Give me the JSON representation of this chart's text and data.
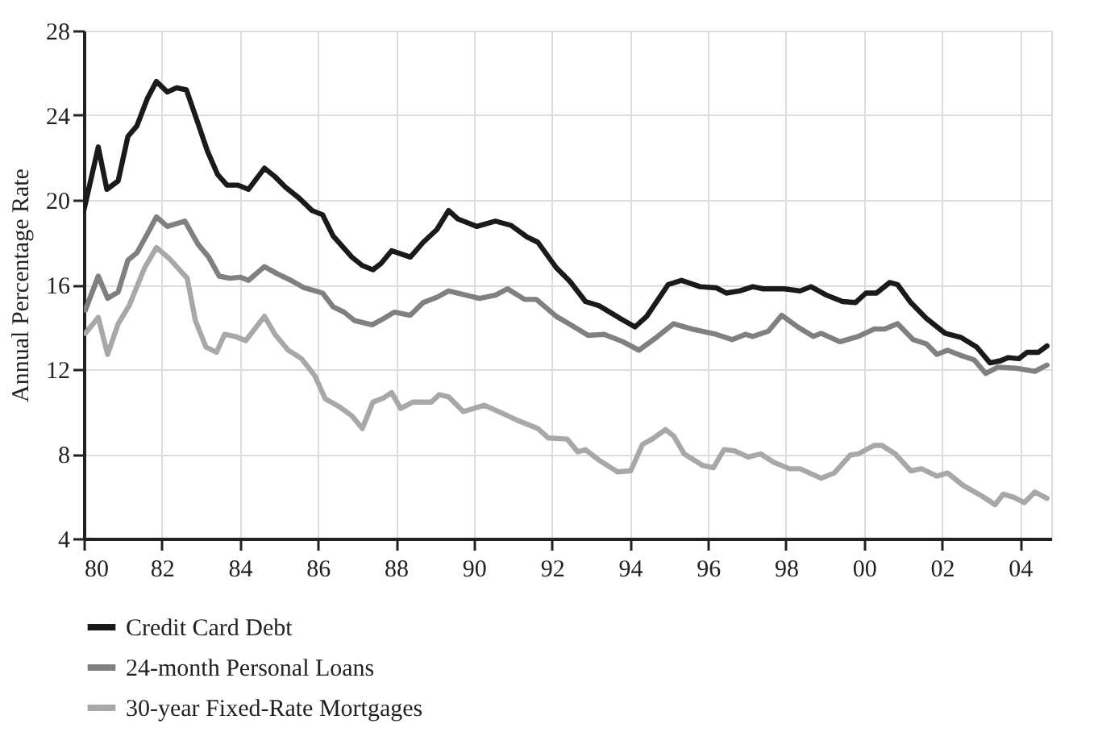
{
  "chart_data": {
    "type": "line",
    "ylabel": "Annual Percentage Rate",
    "xlim": [
      1980,
      2004.8
    ],
    "ylim": [
      4,
      28
    ],
    "xticks": [
      {
        "value": 1980,
        "label": "80"
      },
      {
        "value": 1982,
        "label": "82"
      },
      {
        "value": 1984,
        "label": "84"
      },
      {
        "value": 1986,
        "label": "86"
      },
      {
        "value": 1988,
        "label": "88"
      },
      {
        "value": 1990,
        "label": "90"
      },
      {
        "value": 1992,
        "label": "92"
      },
      {
        "value": 1994,
        "label": "94"
      },
      {
        "value": 1996,
        "label": "96"
      },
      {
        "value": 1998,
        "label": "98"
      },
      {
        "value": 2000,
        "label": "00"
      },
      {
        "value": 2002,
        "label": "02"
      },
      {
        "value": 2004,
        "label": "04"
      }
    ],
    "yticks": [
      4,
      8,
      12,
      16,
      20,
      24,
      28
    ],
    "grid": true,
    "legend": "bottom",
    "marker": "none",
    "line_style": "solid",
    "series": [
      {
        "name": "Credit Card Debt",
        "color": "#1a1a1a",
        "x": [
          1980.0,
          1980.37,
          1980.59,
          1980.88,
          1981.13,
          1981.36,
          1981.63,
          1981.86,
          1982.14,
          1982.38,
          1982.63,
          1982.93,
          1983.17,
          1983.43,
          1983.67,
          1983.95,
          1984.22,
          1984.63,
          1984.9,
          1985.17,
          1985.51,
          1985.85,
          1986.12,
          1986.39,
          1986.87,
          1987.14,
          1987.41,
          1987.62,
          1987.89,
          1988.37,
          1988.7,
          1989.05,
          1989.35,
          1989.59,
          1990.07,
          1990.55,
          1990.95,
          1991.36,
          1991.64,
          1992.11,
          1992.46,
          1992.86,
          1993.21,
          1993.75,
          1994.13,
          1994.43,
          1994.98,
          1995.32,
          1995.8,
          1996.21,
          1996.47,
          1996.81,
          1997.15,
          1997.42,
          1997.96,
          1998.36,
          1998.64,
          1999.04,
          1999.45,
          1999.78,
          2000.05,
          2000.32,
          2000.66,
          2000.86,
          2001.2,
          2001.6,
          2002.08,
          2002.49,
          2002.89,
          2003.23,
          2003.5,
          2003.7,
          2003.97,
          2004.18,
          2004.47,
          2004.69
        ],
        "values": [
          19.5,
          22.5,
          20.5,
          20.9,
          23.0,
          23.5,
          24.8,
          25.6,
          25.1,
          25.3,
          25.2,
          23.6,
          22.3,
          21.2,
          20.7,
          20.7,
          20.5,
          21.5,
          21.1,
          20.6,
          20.1,
          19.5,
          19.3,
          18.3,
          17.3,
          16.9,
          16.7,
          17.0,
          17.6,
          17.3,
          18.0,
          18.6,
          19.5,
          19.1,
          18.75,
          19.0,
          18.8,
          18.25,
          18.0,
          16.8,
          16.15,
          15.2,
          15.0,
          14.4,
          14.0,
          14.5,
          16.0,
          16.2,
          15.9,
          15.85,
          15.6,
          15.7,
          15.9,
          15.8,
          15.8,
          15.7,
          15.9,
          15.5,
          15.2,
          15.15,
          15.6,
          15.6,
          16.1,
          16.0,
          15.15,
          14.4,
          13.7,
          13.5,
          13.05,
          12.3,
          12.4,
          12.55,
          12.5,
          12.8,
          12.8,
          13.1
        ]
      },
      {
        "name": "24-month Personal Loans",
        "color": "#808080",
        "x": [
          1980.04,
          1980.37,
          1980.61,
          1980.88,
          1981.13,
          1981.36,
          1981.63,
          1981.86,
          1982.14,
          1982.59,
          1982.93,
          1983.2,
          1983.47,
          1983.74,
          1984.01,
          1984.22,
          1984.63,
          1984.97,
          1985.31,
          1985.65,
          1986.12,
          1986.39,
          1986.67,
          1986.94,
          1987.39,
          1987.69,
          1987.96,
          1988.37,
          1988.7,
          1989.05,
          1989.35,
          1989.8,
          1990.14,
          1990.55,
          1990.86,
          1991.3,
          1991.6,
          1992.11,
          1992.39,
          1992.93,
          1993.34,
          1993.82,
          1994.23,
          1994.71,
          1995.12,
          1995.59,
          1996.21,
          1996.62,
          1996.96,
          1997.15,
          1997.55,
          1997.89,
          1998.3,
          1998.7,
          1998.9,
          1999.38,
          1999.85,
          2000.26,
          2000.53,
          2000.86,
          2001.26,
          2001.6,
          2001.87,
          2002.14,
          2002.49,
          2002.82,
          2003.12,
          2003.43,
          2003.9,
          2004.38,
          2004.69
        ],
        "values": [
          14.8,
          16.4,
          15.35,
          15.65,
          17.15,
          17.5,
          18.4,
          19.2,
          18.75,
          19.0,
          17.9,
          17.3,
          16.4,
          16.3,
          16.35,
          16.2,
          16.85,
          16.5,
          16.2,
          15.85,
          15.6,
          14.95,
          14.7,
          14.3,
          14.1,
          14.4,
          14.7,
          14.55,
          15.15,
          15.4,
          15.7,
          15.5,
          15.35,
          15.5,
          15.8,
          15.3,
          15.3,
          14.5,
          14.2,
          13.6,
          13.65,
          13.3,
          12.9,
          13.55,
          14.15,
          13.9,
          13.65,
          13.4,
          13.65,
          13.55,
          13.8,
          14.55,
          14.0,
          13.55,
          13.7,
          13.3,
          13.55,
          13.9,
          13.9,
          14.15,
          13.4,
          13.2,
          12.7,
          12.9,
          12.65,
          12.45,
          11.8,
          12.1,
          12.05,
          11.9,
          12.2
        ]
      },
      {
        "name": "30-year Fixed-Rate Mortgages",
        "color": "#a8a8a8",
        "x": [
          1980.04,
          1980.37,
          1980.61,
          1980.88,
          1981.16,
          1981.56,
          1981.86,
          1982.18,
          1982.65,
          1982.86,
          1983.13,
          1983.4,
          1983.61,
          1983.88,
          1984.15,
          1984.63,
          1984.9,
          1985.24,
          1985.58,
          1985.92,
          1986.19,
          1986.53,
          1986.87,
          1987.14,
          1987.41,
          1987.69,
          1987.89,
          1988.12,
          1988.44,
          1988.91,
          1989.11,
          1989.35,
          1989.73,
          1990.27,
          1990.75,
          1991.16,
          1991.64,
          1991.91,
          1992.39,
          1992.66,
          1992.86,
          1993.21,
          1993.68,
          1994.02,
          1994.32,
          1994.57,
          1994.91,
          1995.12,
          1995.39,
          1995.87,
          1996.14,
          1996.41,
          1996.68,
          1997.03,
          1997.35,
          1997.69,
          1998.09,
          1998.36,
          1998.9,
          1999.24,
          1999.65,
          1999.85,
          2000.26,
          2000.46,
          2000.8,
          2001.2,
          2001.47,
          2001.87,
          2002.14,
          2002.55,
          2003.03,
          2003.36,
          2003.57,
          2003.84,
          2004.11,
          2004.38,
          2004.69
        ],
        "values": [
          13.7,
          14.45,
          12.7,
          14.15,
          15.0,
          16.8,
          17.75,
          17.25,
          16.3,
          14.3,
          13.05,
          12.8,
          13.65,
          13.55,
          13.35,
          14.5,
          13.65,
          12.9,
          12.5,
          11.7,
          10.6,
          10.25,
          9.8,
          9.2,
          10.45,
          10.65,
          10.9,
          10.15,
          10.45,
          10.45,
          10.8,
          10.7,
          10.0,
          10.3,
          9.9,
          9.55,
          9.2,
          8.75,
          8.7,
          8.1,
          8.2,
          7.7,
          7.15,
          7.2,
          8.45,
          8.7,
          9.15,
          8.85,
          8.0,
          7.45,
          7.35,
          8.2,
          8.15,
          7.85,
          8.0,
          7.6,
          7.3,
          7.3,
          6.85,
          7.1,
          7.95,
          8.0,
          8.4,
          8.4,
          8.0,
          7.2,
          7.3,
          6.95,
          7.1,
          6.5,
          6.0,
          5.6,
          6.1,
          5.95,
          5.7,
          6.2,
          5.9
        ]
      }
    ]
  }
}
